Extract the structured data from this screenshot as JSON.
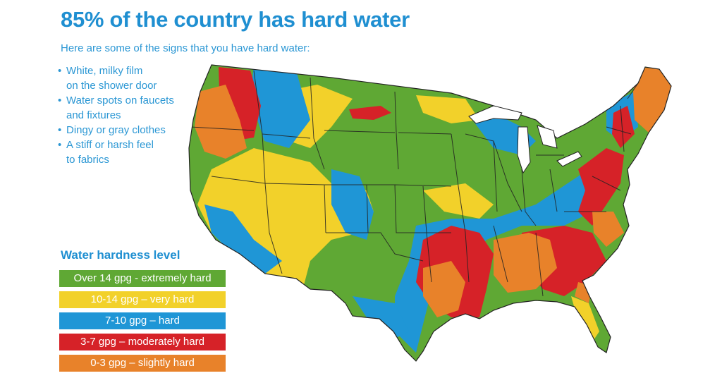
{
  "title": "85% of the country has hard water",
  "subtitle": "Here are some of the signs that you have hard water:",
  "signs": [
    [
      "White, milky film",
      "on the shower door"
    ],
    [
      "Water spots on faucets",
      "and fixtures"
    ],
    [
      "Dingy or gray clothes"
    ],
    [
      "A stiff or harsh feel",
      "to fabrics"
    ]
  ],
  "legend": {
    "title": "Water hardness level",
    "items": [
      {
        "label": "Over 14 gpg - extremely hard",
        "color": "#5fa834"
      },
      {
        "label": "10-14 gpg – very hard",
        "color": "#f2d12a"
      },
      {
        "label": "7-10 gpg – hard",
        "color": "#1f96d6"
      },
      {
        "label": "3-7 gpg – moderately hard",
        "color": "#d62228"
      },
      {
        "label": "0-3 gpg – slightly hard",
        "color": "#e8822a"
      }
    ]
  },
  "colors": {
    "extremely_hard": "#5fa834",
    "very_hard": "#f2d12a",
    "hard": "#1f96d6",
    "moderately_hard": "#d62228",
    "slightly_hard": "#e8822a",
    "heading": "#1f8fd1",
    "text": "#2b97d4"
  }
}
